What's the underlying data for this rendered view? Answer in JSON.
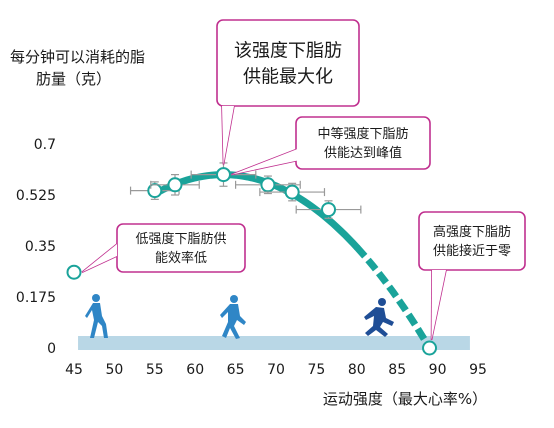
{
  "chart_data": {
    "type": "line",
    "ylabel": "每分钟可以消耗的脂肪量（克）",
    "xlabel": "运动强度（最大心率%）",
    "xlim": [
      45,
      95
    ],
    "ylim": [
      0,
      0.7
    ],
    "x_ticks": [
      "45",
      "50",
      "55",
      "60",
      "65",
      "70",
      "75",
      "80",
      "85",
      "90",
      "95"
    ],
    "y_ticks": [
      "0",
      "0.175",
      "0.35",
      "0.525",
      "0.7"
    ],
    "series": [
      {
        "x": [
          55,
          57.5,
          63.5,
          69,
          72,
          76.5
        ],
        "y": [
          0.54,
          0.56,
          0.595,
          0.56,
          0.535,
          0.475
        ],
        "x_err": [
          3.0,
          3.0,
          4.0,
          4.0,
          4.0,
          4.0
        ],
        "y_err": [
          0.03,
          0.035,
          0.04,
          0.03,
          0.03,
          0.03
        ]
      }
    ],
    "extra_points": [
      {
        "x": 45,
        "y": 0.26
      },
      {
        "x": 89,
        "y": 0
      }
    ],
    "annotations": [
      {
        "text": [
          "该强度下脂肪",
          "供能最大化"
        ]
      },
      {
        "text": [
          "中等强度下脂肪",
          "供能达到峰值"
        ]
      },
      {
        "text": [
          "低强度下脂肪供",
          "能效率低"
        ]
      },
      {
        "text": [
          "高强度下脂肪",
          "供能接近于零"
        ]
      }
    ],
    "grid": false,
    "colors": {
      "curve": "#1aa39a",
      "callout_border": "#c0308f",
      "band": "#b9d7e6",
      "figure": "#2f86c6"
    }
  }
}
